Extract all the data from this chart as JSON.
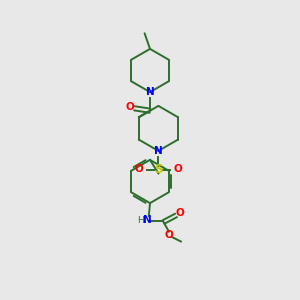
{
  "bg_color": "#e8e8e8",
  "bond_color": "#2d6e2d",
  "N_color": "#0000ff",
  "O_color": "#ff0000",
  "S_color": "#cccc00",
  "bond_lw": 1.4,
  "figsize": [
    3.0,
    3.0
  ],
  "dpi": 100,
  "xlim": [
    0,
    10
  ],
  "ylim": [
    0,
    10
  ]
}
